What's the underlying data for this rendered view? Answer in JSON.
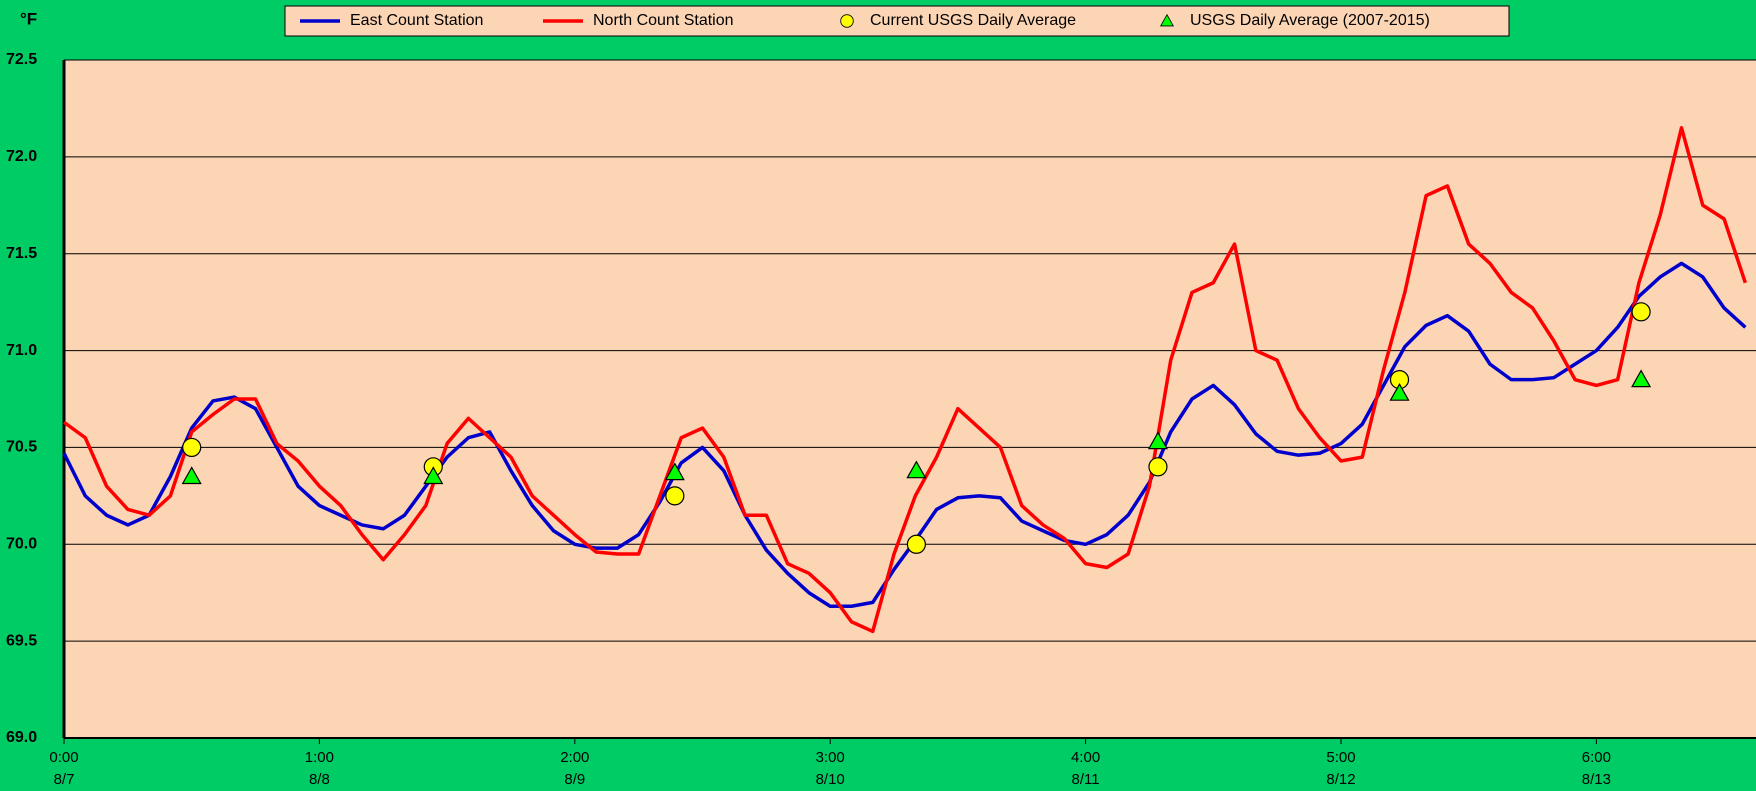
{
  "chart_data": {
    "type": "line",
    "y_unit": "°F",
    "x": [
      0,
      2,
      4,
      6,
      8,
      10,
      12,
      14,
      16,
      18,
      20,
      22,
      24,
      26,
      28,
      30,
      32,
      34,
      36,
      38,
      40,
      42,
      44,
      46,
      48,
      50,
      52,
      54,
      56,
      58,
      60,
      62,
      64,
      66,
      68,
      70,
      72,
      74,
      76,
      78,
      80,
      82,
      84,
      86,
      88,
      90,
      92,
      94,
      96,
      98,
      100,
      102,
      104,
      106,
      108,
      110,
      112,
      114,
      116,
      118,
      120,
      122,
      124,
      126,
      128,
      130,
      132,
      134,
      136,
      138,
      140,
      142,
      144,
      146,
      148,
      150,
      152,
      154,
      156,
      158
    ],
    "xlim": [
      0,
      159
    ],
    "xticks": [
      {
        "value": 0,
        "label": "0:00"
      },
      {
        "value": 24,
        "label": "1:00"
      },
      {
        "value": 48,
        "label": "2:00"
      },
      {
        "value": 72,
        "label": "3:00"
      },
      {
        "value": 96,
        "label": "4:00"
      },
      {
        "value": 120,
        "label": "5:00"
      },
      {
        "value": 144,
        "label": "6:00"
      }
    ],
    "xtick_dates": [
      "8/7",
      "8/8",
      "8/9",
      "8/10",
      "8/11",
      "8/12",
      "8/13"
    ],
    "ylim": [
      69.0,
      72.5
    ],
    "yticks": [
      {
        "value": 69.0,
        "label": "69.0"
      },
      {
        "value": 69.5,
        "label": "69.5"
      },
      {
        "value": 70.0,
        "label": "70.0"
      },
      {
        "value": 70.5,
        "label": "70.5"
      },
      {
        "value": 71.0,
        "label": "71.0"
      },
      {
        "value": 71.5,
        "label": "71.5"
      },
      {
        "value": 72.0,
        "label": "72.0"
      },
      {
        "value": 72.5,
        "label": "72.5"
      }
    ],
    "grid": true,
    "legend": "top",
    "series": [
      {
        "name": "East Count Station",
        "color": "#0000cc",
        "type": "line",
        "values": [
          70.47,
          70.25,
          70.15,
          70.1,
          70.15,
          70.35,
          70.6,
          70.74,
          70.76,
          70.7,
          70.5,
          70.3,
          70.2,
          70.15,
          70.1,
          70.08,
          70.15,
          70.3,
          70.45,
          70.55,
          70.58,
          70.38,
          70.2,
          70.07,
          70.0,
          69.98,
          69.98,
          70.05,
          70.22,
          70.42,
          70.5,
          70.38,
          70.15,
          69.97,
          69.85,
          69.75,
          69.68,
          69.68,
          69.7,
          69.87,
          70.02,
          70.18,
          70.24,
          70.25,
          70.24,
          70.12,
          70.07,
          70.02,
          70.0,
          70.05,
          70.15,
          70.32,
          70.58,
          70.75,
          70.82,
          70.72,
          70.57,
          70.48,
          70.46,
          70.47,
          70.52,
          70.62,
          70.82,
          71.02,
          71.13,
          71.18,
          71.1,
          70.93,
          70.85,
          70.85,
          70.86,
          70.93,
          71.0,
          71.12,
          71.28,
          71.38,
          71.45,
          71.38,
          71.22,
          71.12
        ]
      },
      {
        "name": "North Count Station",
        "color": "#ff0000",
        "type": "line",
        "values": [
          70.63,
          70.55,
          70.3,
          70.18,
          70.15,
          70.25,
          70.58,
          70.67,
          70.75,
          70.75,
          70.52,
          70.43,
          70.3,
          70.2,
          70.05,
          69.92,
          70.05,
          70.2,
          70.52,
          70.65,
          70.55,
          70.45,
          70.25,
          70.15,
          70.05,
          69.96,
          69.95,
          69.95,
          70.25,
          70.55,
          70.6,
          70.45,
          70.15,
          70.15,
          69.9,
          69.85,
          69.75,
          69.6,
          69.55,
          69.95,
          70.25,
          70.45,
          70.7,
          70.6,
          70.5,
          70.2,
          70.1,
          70.03,
          69.9,
          69.88,
          69.95,
          70.3,
          70.95,
          71.3,
          71.35,
          71.55,
          71.0,
          70.95,
          70.7,
          70.55,
          70.43,
          70.45,
          70.9,
          71.3,
          71.8,
          71.85,
          71.55,
          71.45,
          71.3,
          71.22,
          71.05,
          70.85,
          70.82,
          70.85,
          71.35,
          71.7,
          72.15,
          71.75,
          71.68,
          71.35
        ]
      },
      {
        "name": "Current USGS Daily Average",
        "color": "#ffff00",
        "type": "scatter",
        "marker": "circle",
        "x": [
          12,
          34.7,
          57.4,
          80.1,
          102.8,
          125.5,
          148.2
        ],
        "values": [
          70.5,
          70.4,
          70.25,
          70.0,
          70.4,
          70.85,
          71.2
        ]
      },
      {
        "name": "USGS Daily Average (2007-2015)",
        "color": "#00ff00",
        "type": "scatter",
        "marker": "triangle",
        "x": [
          12,
          34.7,
          57.4,
          80.1,
          102.8,
          125.5,
          148.2
        ],
        "values": [
          70.35,
          70.35,
          70.37,
          70.38,
          70.53,
          70.78,
          70.85
        ]
      }
    ]
  }
}
